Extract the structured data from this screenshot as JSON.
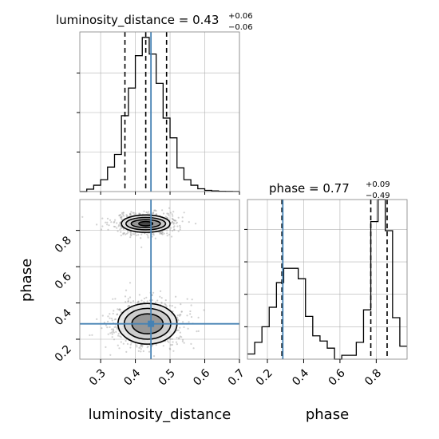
{
  "chart_data": [
    {
      "type": "histogram",
      "panel": "luminosity_distance",
      "title": {
        "param": "luminosity_distance",
        "value": "0.43",
        "plus": "+0.06",
        "minus": "−0.06"
      },
      "xlim": [
        0.24,
        0.7
      ],
      "ylim": [
        0,
        2020
      ],
      "bins": [
        0.24,
        0.26,
        0.28,
        0.3,
        0.32,
        0.34,
        0.36,
        0.38,
        0.4,
        0.42,
        0.44,
        0.46,
        0.48,
        0.5,
        0.52,
        0.54,
        0.56,
        0.58,
        0.6,
        0.62,
        0.64,
        0.66,
        0.68,
        0.7
      ],
      "counts": [
        0,
        30,
        80,
        150,
        310,
        470,
        960,
        1310,
        1720,
        1950,
        1740,
        1370,
        930,
        680,
        300,
        150,
        80,
        35,
        15,
        8,
        4,
        2,
        1
      ],
      "quantiles": [
        0.37,
        0.43,
        0.49
      ],
      "truth": 0.445,
      "grid": true
    },
    {
      "type": "contour",
      "panel": "luminosity_distance-phase",
      "xlim": [
        0.24,
        0.7
      ],
      "ylim": [
        0.09,
        0.97
      ],
      "xticks": [
        0.3,
        0.4,
        0.5,
        0.6,
        0.7
      ],
      "xticklabels": [
        "0.3",
        "0.4",
        "0.5",
        "0.6",
        "0.7"
      ],
      "yticks": [
        0.2,
        0.4,
        0.6,
        0.8
      ],
      "yticklabels": [
        "0.2",
        "0.4",
        "0.6",
        "0.8"
      ],
      "xlabel": "luminosity_distance",
      "ylabel": "phase",
      "modes": [
        {
          "center": [
            0.43,
            0.837
          ],
          "levels": [
            [
              0.07,
              0.048
            ],
            [
              0.057,
              0.034
            ],
            [
              0.042,
              0.022
            ],
            [
              0.02,
              0.012
            ]
          ]
        },
        {
          "center": [
            0.435,
            0.285
          ],
          "levels": [
            [
              0.085,
              0.112
            ],
            [
              0.067,
              0.085
            ],
            [
              0.045,
              0.055
            ]
          ]
        }
      ],
      "truth": [
        0.445,
        0.285
      ],
      "grid": true
    },
    {
      "type": "histogram",
      "panel": "phase",
      "title": {
        "param": "phase",
        "value": "0.77",
        "plus": "+0.09",
        "minus": "−0.49"
      },
      "xlim": [
        0.09,
        0.97
      ],
      "ylim": [
        0,
        1230
      ],
      "bins": [
        0.09,
        0.13,
        0.17,
        0.21,
        0.25,
        0.29,
        0.33,
        0.37,
        0.41,
        0.45,
        0.49,
        0.53,
        0.57,
        0.61,
        0.65,
        0.69,
        0.73,
        0.77,
        0.81,
        0.85,
        0.89,
        0.93,
        0.97
      ],
      "counts": [
        40,
        130,
        250,
        400,
        590,
        700,
        700,
        620,
        330,
        180,
        140,
        85,
        0,
        30,
        30,
        130,
        380,
        1060,
        1230,
        990,
        320,
        100
      ],
      "quantiles": [
        0.28,
        0.77,
        0.86
      ],
      "truth": 0.285,
      "xticks": [
        0.2,
        0.4,
        0.6,
        0.8
      ],
      "xticklabels": [
        "0.2",
        "0.4",
        "0.6",
        "0.8"
      ],
      "xlabel": "phase",
      "grid": true
    }
  ],
  "colors": {
    "hist_line": "#000000",
    "truth": "#4682b4",
    "grid": "#b0b0b0",
    "scatter": "#9a9a9a"
  }
}
